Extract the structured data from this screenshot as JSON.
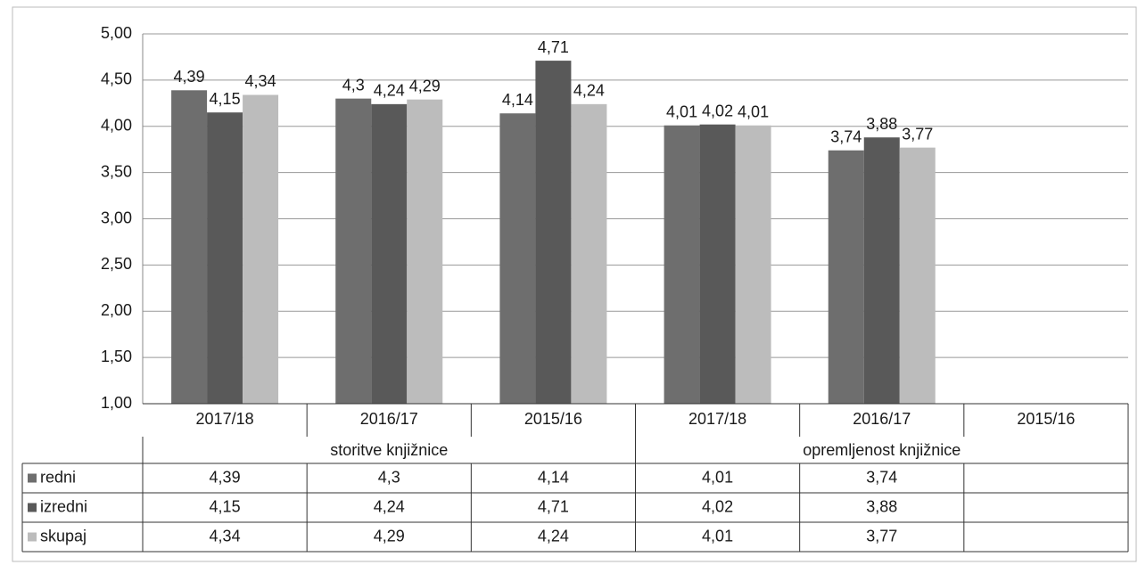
{
  "chart_data": {
    "type": "bar",
    "categories": [
      "2017/18",
      "2016/17",
      "2015/16",
      "2017/18",
      "2016/17",
      "2015/16"
    ],
    "groups": [
      {
        "name": "storitve knjižnice",
        "span": 3
      },
      {
        "name": "opremljenost knjižnice",
        "span": 3
      }
    ],
    "series": [
      {
        "name": "redni",
        "color": "#6e6e6e",
        "values": [
          4.39,
          4.3,
          4.14,
          4.01,
          3.74,
          null
        ],
        "value_labels": [
          "4,39",
          "4,3",
          "4,14",
          "4,01",
          "3,74",
          null
        ]
      },
      {
        "name": "izredni",
        "color": "#595959",
        "values": [
          4.15,
          4.24,
          4.71,
          4.02,
          3.88,
          null
        ],
        "value_labels": [
          "4,15",
          "4,24",
          "4,71",
          "4,02",
          "3,88",
          null
        ]
      },
      {
        "name": "skupaj",
        "color": "#bcbcbc",
        "values": [
          4.34,
          4.29,
          4.24,
          4.01,
          3.77,
          null
        ],
        "value_labels": [
          "4,34",
          "4,29",
          "4,24",
          "4,01",
          "3,77",
          null
        ]
      }
    ],
    "ylim": [
      1,
      5
    ],
    "yticks": [
      {
        "value": 1,
        "label": "1,00"
      },
      {
        "value": 1.5,
        "label": "1,50"
      },
      {
        "value": 2,
        "label": "2,00"
      },
      {
        "value": 2.5,
        "label": "2,50"
      },
      {
        "value": 3,
        "label": "3,00"
      },
      {
        "value": 3.5,
        "label": "3,50"
      },
      {
        "value": 4,
        "label": "4,00"
      },
      {
        "value": 4.5,
        "label": "4,50"
      },
      {
        "value": 5,
        "label": "5,00"
      }
    ],
    "grid": true,
    "data_table": true
  }
}
